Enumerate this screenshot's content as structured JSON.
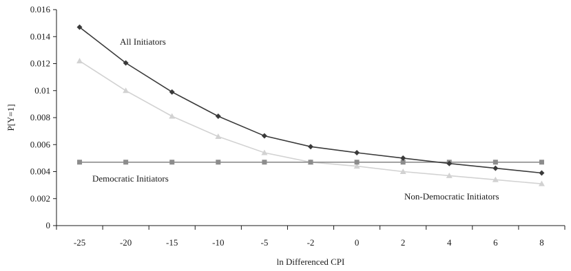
{
  "chart_data": {
    "type": "line",
    "xlabel": "ln Differenced CPI",
    "ylabel": "P[Y=1]",
    "categories": [
      "-25",
      "-20",
      "-15",
      "-10",
      "-5",
      "-2",
      "0",
      "2",
      "4",
      "6",
      "8"
    ],
    "ylim": [
      0,
      0.016
    ],
    "yticks": [
      "0",
      "0.002",
      "0.004",
      "0.006",
      "0.008",
      "0.01",
      "0.012",
      "0.014",
      "0.016"
    ],
    "grid": false,
    "legend": "none",
    "series": [
      {
        "name": "All Initiators",
        "color": "#3a3a3a",
        "marker": "diamond",
        "values": [
          0.0147,
          0.01205,
          0.0099,
          0.0081,
          0.00665,
          0.00585,
          0.0054,
          0.005,
          0.0046,
          0.00425,
          0.0039
        ]
      },
      {
        "name": "Democratic Initiators",
        "color": "#8c8c8c",
        "marker": "square",
        "values": [
          0.0047,
          0.0047,
          0.0047,
          0.0047,
          0.0047,
          0.0047,
          0.0047,
          0.0047,
          0.0047,
          0.0047,
          0.0047
        ]
      },
      {
        "name": "Non-Democratic Initiators",
        "color": "#d2d2d2",
        "marker": "triangle",
        "values": [
          0.0122,
          0.01,
          0.0081,
          0.0066,
          0.0054,
          0.0047,
          0.0044,
          0.004,
          0.0037,
          0.0034,
          0.0031
        ]
      }
    ]
  }
}
